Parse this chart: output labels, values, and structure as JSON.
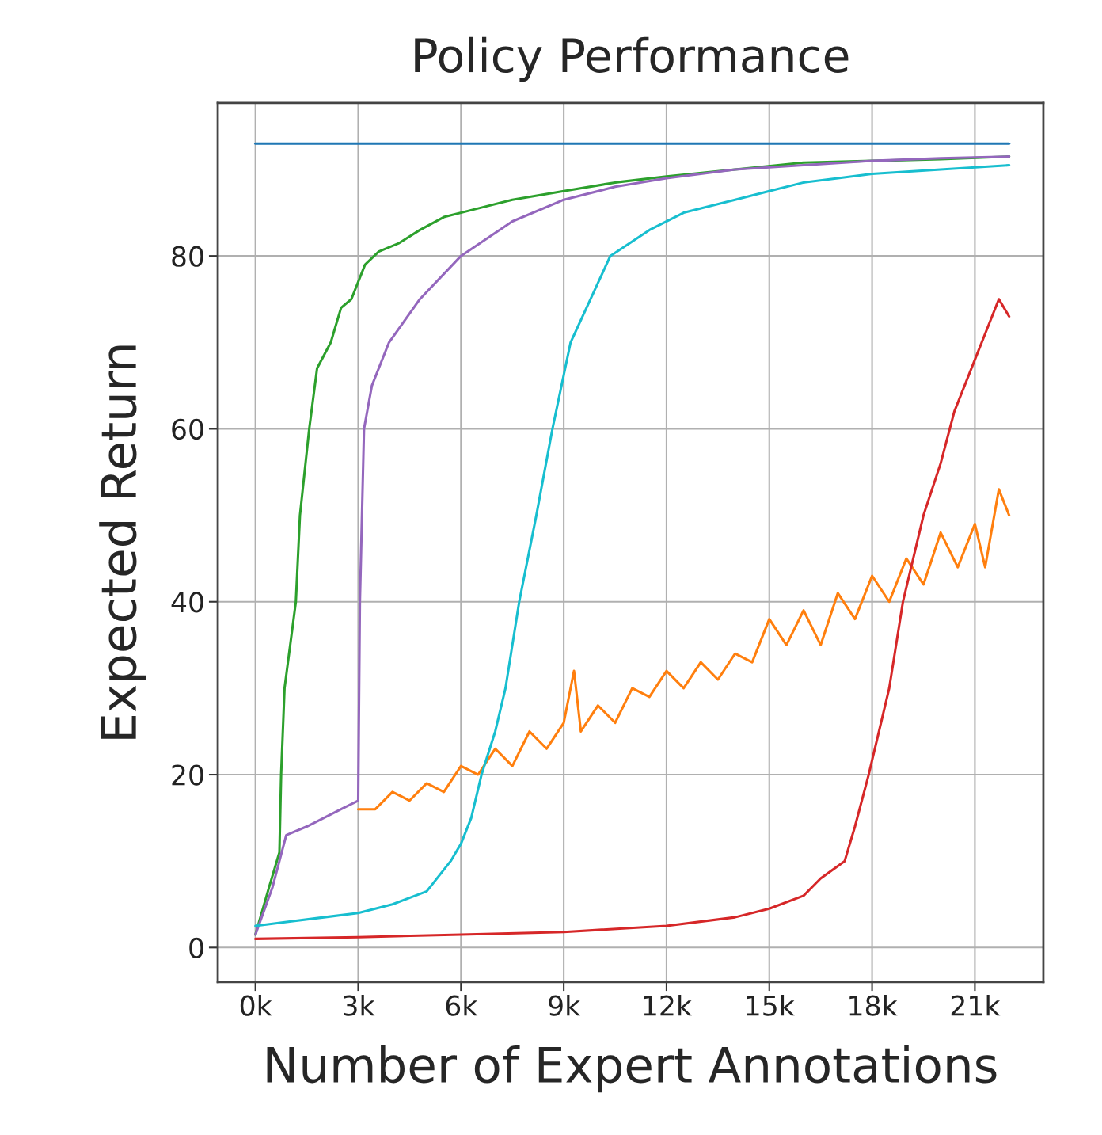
{
  "chart_data": {
    "type": "line",
    "title": "Policy Performance",
    "xlabel": "Number of Expert Annotations",
    "ylabel": "Expected Return",
    "xlim": [
      -1100,
      23000
    ],
    "ylim": [
      -4,
      97.7
    ],
    "xticks": [
      {
        "value": 0,
        "label": "0k"
      },
      {
        "value": 3000,
        "label": "3k"
      },
      {
        "value": 6000,
        "label": "6k"
      },
      {
        "value": 9000,
        "label": "9k"
      },
      {
        "value": 12000,
        "label": "12k"
      },
      {
        "value": 15000,
        "label": "15k"
      },
      {
        "value": 18000,
        "label": "18k"
      },
      {
        "value": 21000,
        "label": "21k"
      }
    ],
    "yticks": [
      0,
      20,
      40,
      60,
      80
    ],
    "grid": true,
    "legend": false,
    "line_style": "solid",
    "marker": "none",
    "series": [
      {
        "color": "#1f77b4",
        "x": [
          0,
          22000
        ],
        "values": [
          93,
          93
        ]
      },
      {
        "color": "#ff7f0e",
        "x": [
          3000,
          3500,
          4000,
          4500,
          5000,
          5500,
          6000,
          6500,
          7000,
          7500,
          8000,
          8500,
          9000,
          9300,
          9500,
          10000,
          10500,
          11000,
          11500,
          12000,
          12500,
          13000,
          13500,
          14000,
          14500,
          15000,
          15500,
          16000,
          16500,
          17000,
          17500,
          18000,
          18500,
          19000,
          19500,
          20000,
          20500,
          21000,
          21300,
          21700,
          22000
        ],
        "values": [
          16,
          16,
          18,
          17,
          19,
          18,
          21,
          20,
          23,
          21,
          25,
          23,
          26,
          32,
          25,
          28,
          26,
          30,
          29,
          32,
          30,
          33,
          31,
          34,
          33,
          38,
          35,
          39,
          35,
          41,
          38,
          43,
          40,
          45,
          42,
          48,
          44,
          49,
          44,
          53,
          50
        ]
      },
      {
        "color": "#2ca02c",
        "x": [
          0,
          400,
          700,
          750,
          850,
          1180,
          1300,
          1570,
          1800,
          2200,
          2500,
          2800,
          3200,
          3600,
          4200,
          4800,
          5500,
          6500,
          7500,
          9000,
          10500,
          12000,
          14000,
          16000,
          18000,
          20000,
          22000
        ],
        "values": [
          1.5,
          7,
          11,
          20,
          30,
          40,
          50,
          60,
          67,
          70,
          74,
          75,
          79,
          80.5,
          81.5,
          83,
          84.5,
          85.5,
          86.5,
          87.5,
          88.5,
          89.2,
          90,
          90.8,
          91,
          91.2,
          91.5
        ]
      },
      {
        "color": "#d62728",
        "x": [
          0,
          3000,
          6000,
          9000,
          12000,
          14000,
          15000,
          16000,
          16500,
          17200,
          17500,
          17900,
          18500,
          18900,
          19500,
          20000,
          20400,
          21000,
          21400,
          21700,
          22000
        ],
        "values": [
          1,
          1.2,
          1.5,
          1.8,
          2.5,
          3.5,
          4.5,
          6,
          8,
          10,
          14,
          20,
          30,
          40,
          50,
          56,
          62,
          68,
          72,
          75,
          73
        ]
      },
      {
        "color": "#9467bd",
        "x": [
          0,
          500,
          900,
          1500,
          2000,
          2500,
          3000,
          3050,
          3170,
          3400,
          3900,
          4800,
          6000,
          7500,
          9000,
          10500,
          12000,
          14000,
          16000,
          18000,
          20000,
          22000
        ],
        "values": [
          1.5,
          7,
          13,
          14,
          15,
          16,
          17,
          40,
          60,
          65,
          70,
          75,
          80,
          84,
          86.5,
          88,
          89,
          90,
          90.5,
          91,
          91.3,
          91.5
        ]
      },
      {
        "color": "#17becf",
        "x": [
          0,
          1000,
          2000,
          3000,
          4000,
          5000,
          5700,
          6000,
          6300,
          6600,
          7000,
          7300,
          7700,
          8200,
          8670,
          9200,
          10360,
          11500,
          12500,
          14000,
          15000,
          16000,
          17000,
          18000,
          20000,
          22000
        ],
        "values": [
          2.5,
          3,
          3.5,
          4,
          5,
          6.5,
          10,
          12,
          15,
          20,
          25,
          30,
          40,
          50,
          60,
          70,
          80,
          83,
          85,
          86.5,
          87.5,
          88.5,
          89,
          89.5,
          90,
          90.5
        ]
      }
    ]
  }
}
